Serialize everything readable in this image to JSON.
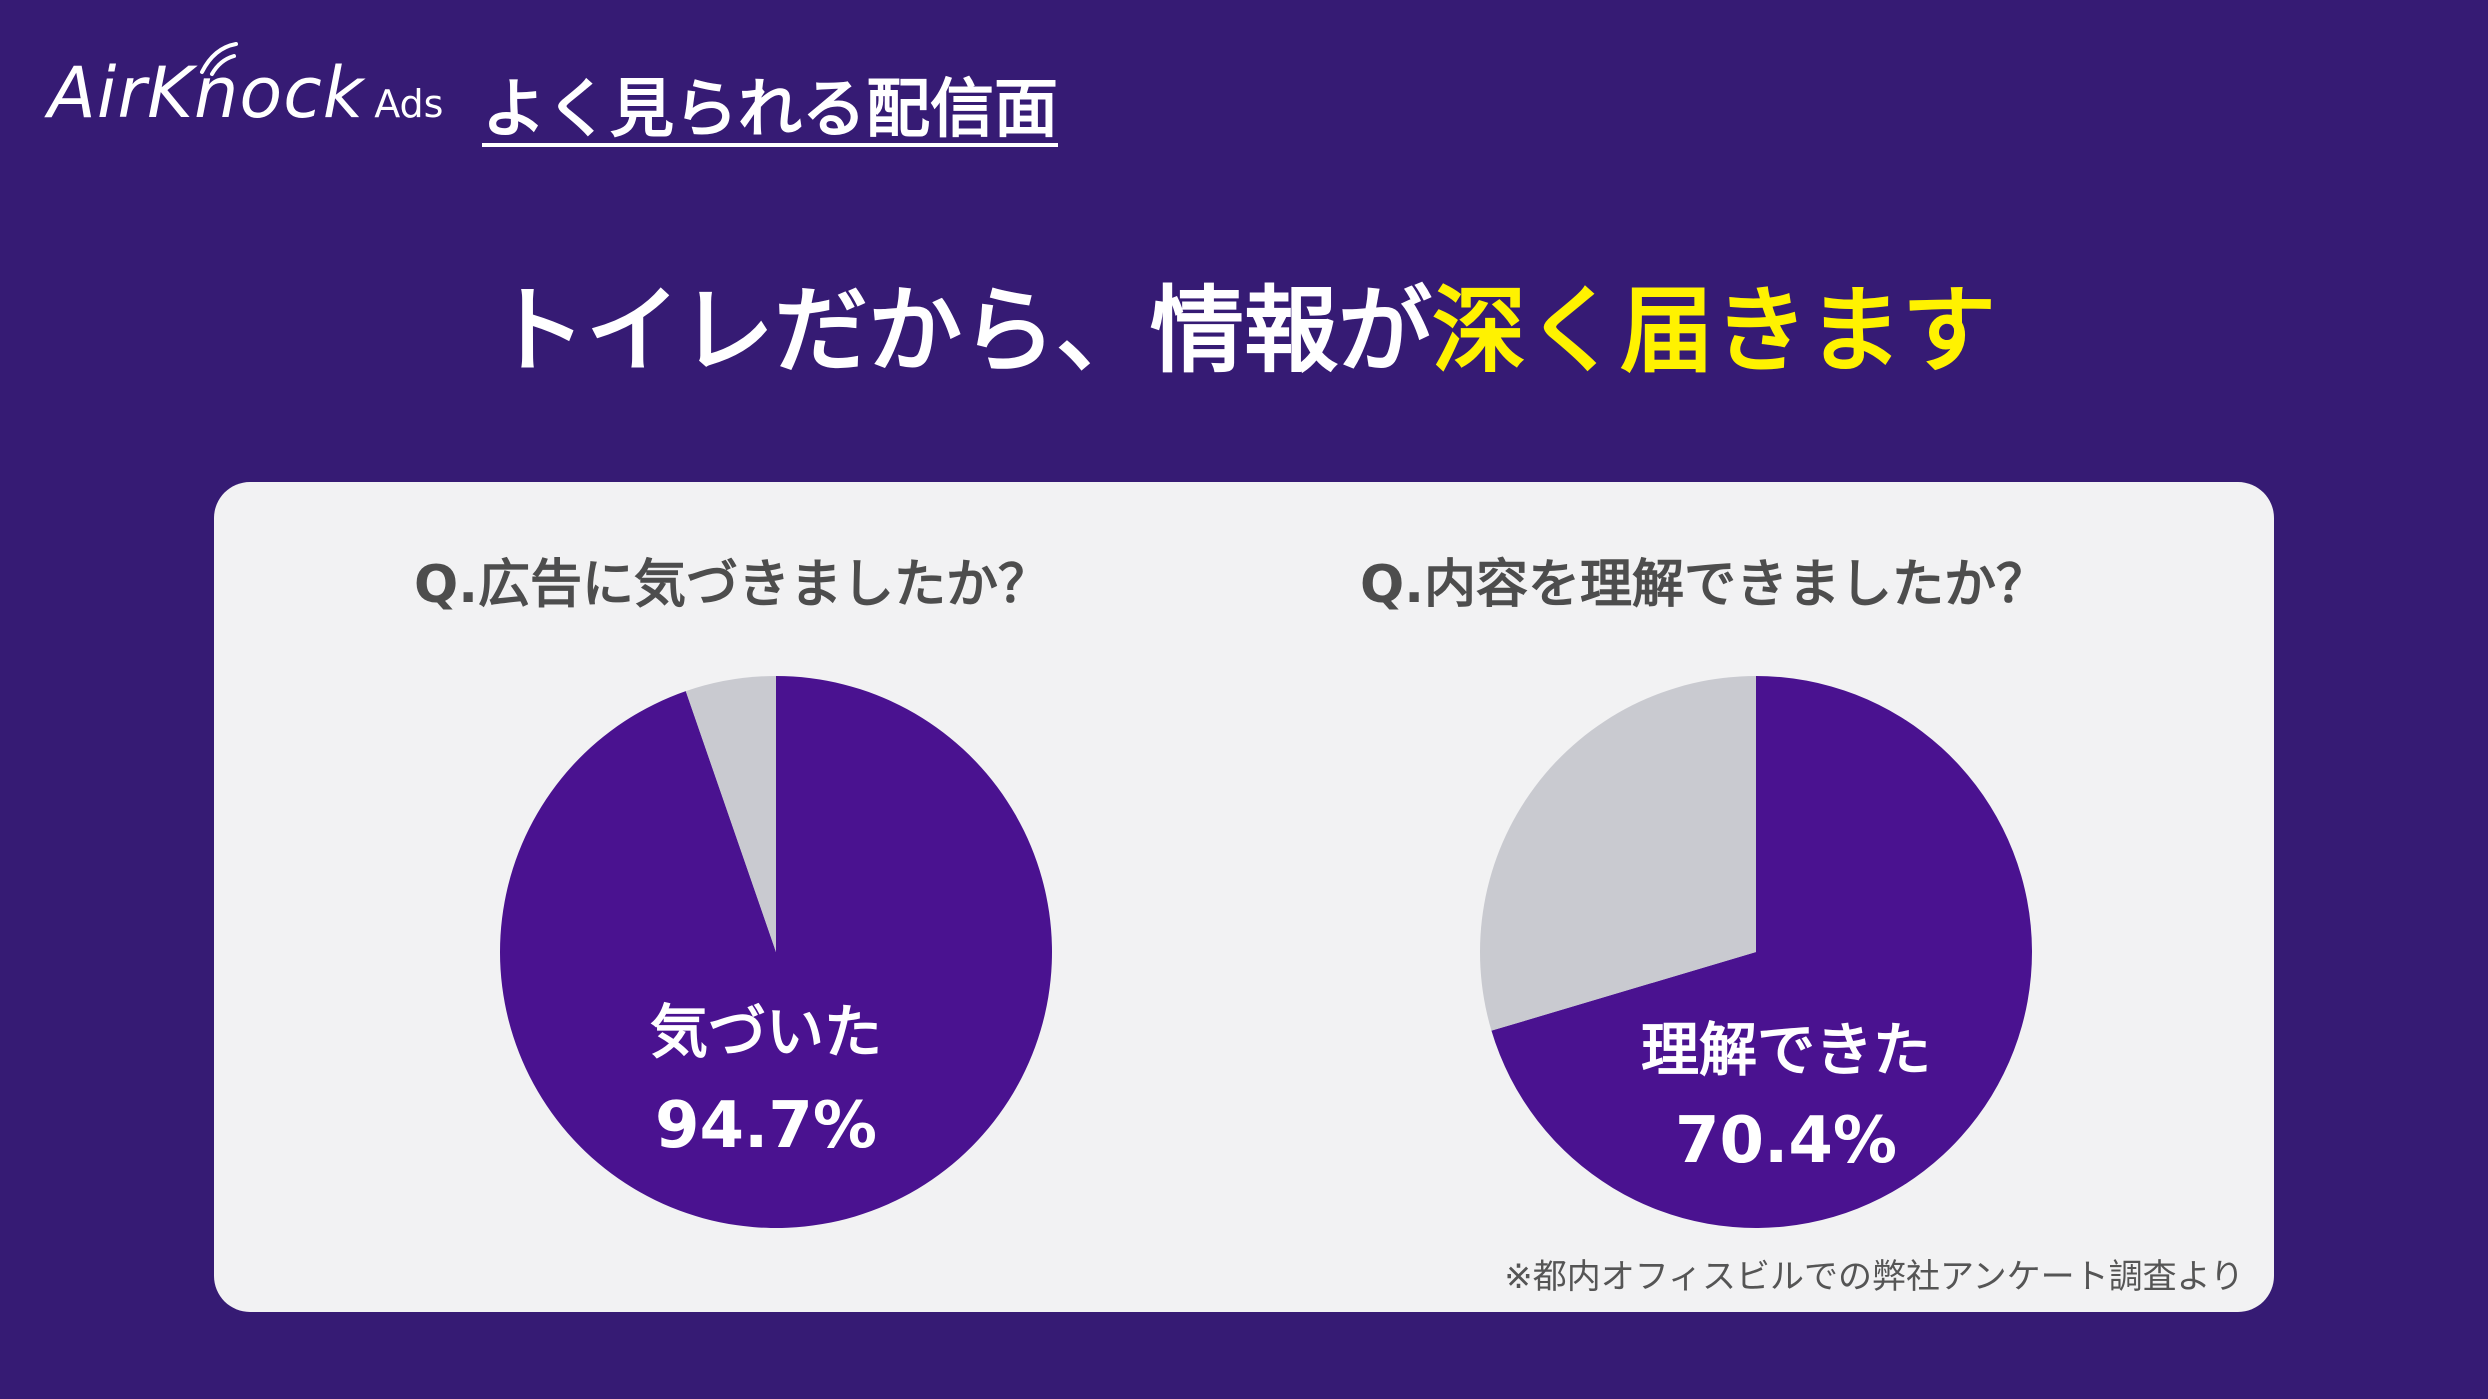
{
  "brand": {
    "logo_main": "AirKnock",
    "logo_sub": "Ads"
  },
  "header": {
    "section_title": "よく見られる配信面"
  },
  "headline": {
    "part1": "トイレだから、情報が",
    "part2_highlight": "深く届きます",
    "highlight_color": "#fff200"
  },
  "colors": {
    "background": "#361b74",
    "panel": "#f2f2f3",
    "primary_slice": "#4a1290",
    "secondary_slice": "#c9cad0"
  },
  "chart_data": [
    {
      "type": "pie",
      "title": "Q.広告に気づきましたか？",
      "slices": [
        {
          "label": "気づいた",
          "value": 94.7,
          "display": "94.7%",
          "color": "#4a1290"
        },
        {
          "label": "",
          "value": 5.3,
          "color": "#c9cad0"
        }
      ]
    },
    {
      "type": "pie",
      "title": "Q.内容を理解できましたか？",
      "slices": [
        {
          "label": "理解できた",
          "value": 70.4,
          "display": "70.4%",
          "color": "#4a1290"
        },
        {
          "label": "",
          "value": 29.6,
          "color": "#c9cad0"
        }
      ]
    }
  ],
  "footnote": "※都内オフィスビルでの弊社アンケート調査より"
}
